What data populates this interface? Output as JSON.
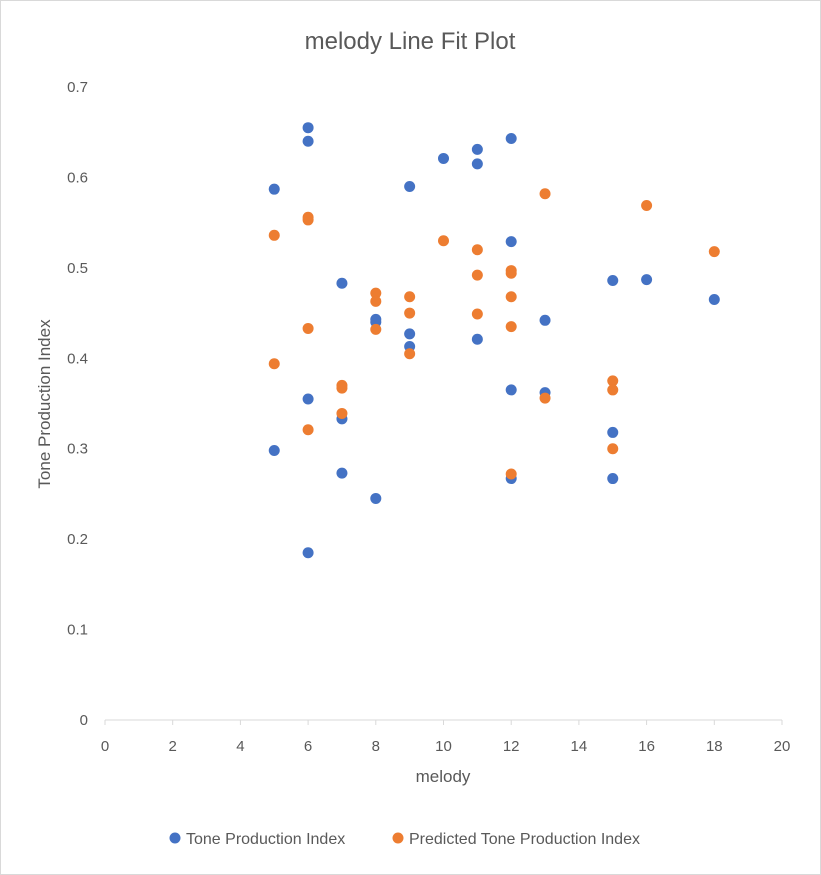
{
  "chart_data": {
    "type": "scatter",
    "title": "melody Line Fit  Plot",
    "xlabel": "melody",
    "ylabel": "Tone Production Index",
    "xlim": [
      0,
      20
    ],
    "ylim": [
      0,
      0.7
    ],
    "x_ticks": [
      "0",
      "2",
      "4",
      "6",
      "8",
      "10",
      "12",
      "14",
      "16",
      "18",
      "20"
    ],
    "y_ticks": [
      "0",
      "0.1",
      "0.2",
      "0.3",
      "0.4",
      "0.5",
      "0.6",
      "0.7"
    ],
    "grid": false,
    "legend_position": "bottom",
    "series": [
      {
        "name": "Tone Production Index",
        "color": "#4472C4",
        "points": [
          [
            5,
            0.587
          ],
          [
            5,
            0.298
          ],
          [
            6,
            0.655
          ],
          [
            6,
            0.64
          ],
          [
            6,
            0.355
          ],
          [
            6,
            0.185
          ],
          [
            7,
            0.483
          ],
          [
            7,
            0.333
          ],
          [
            7,
            0.273
          ],
          [
            8,
            0.443
          ],
          [
            8,
            0.44
          ],
          [
            8,
            0.245
          ],
          [
            9,
            0.59
          ],
          [
            9,
            0.427
          ],
          [
            9,
            0.413
          ],
          [
            10,
            0.621
          ],
          [
            11,
            0.631
          ],
          [
            11,
            0.615
          ],
          [
            11,
            0.421
          ],
          [
            12,
            0.643
          ],
          [
            12,
            0.529
          ],
          [
            12,
            0.365
          ],
          [
            12,
            0.267
          ],
          [
            13,
            0.442
          ],
          [
            13,
            0.362
          ],
          [
            15,
            0.486
          ],
          [
            15,
            0.318
          ],
          [
            15,
            0.267
          ],
          [
            16,
            0.487
          ],
          [
            18,
            0.465
          ]
        ]
      },
      {
        "name": "Predicted Tone Production Index",
        "color": "#ED7D31",
        "points": [
          [
            5,
            0.536
          ],
          [
            5,
            0.394
          ],
          [
            6,
            0.556
          ],
          [
            6,
            0.553
          ],
          [
            6,
            0.433
          ],
          [
            6,
            0.321
          ],
          [
            7,
            0.37
          ],
          [
            7,
            0.367
          ],
          [
            7,
            0.339
          ],
          [
            8,
            0.472
          ],
          [
            8,
            0.463
          ],
          [
            8,
            0.432
          ],
          [
            9,
            0.468
          ],
          [
            9,
            0.45
          ],
          [
            9,
            0.405
          ],
          [
            10,
            0.53
          ],
          [
            11,
            0.52
          ],
          [
            11,
            0.492
          ],
          [
            11,
            0.449
          ],
          [
            12,
            0.497
          ],
          [
            12,
            0.494
          ],
          [
            12,
            0.468
          ],
          [
            12,
            0.435
          ],
          [
            12,
            0.272
          ],
          [
            13,
            0.582
          ],
          [
            13,
            0.356
          ],
          [
            15,
            0.375
          ],
          [
            15,
            0.365
          ],
          [
            15,
            0.3
          ],
          [
            16,
            0.569
          ],
          [
            18,
            0.518
          ]
        ]
      }
    ]
  }
}
